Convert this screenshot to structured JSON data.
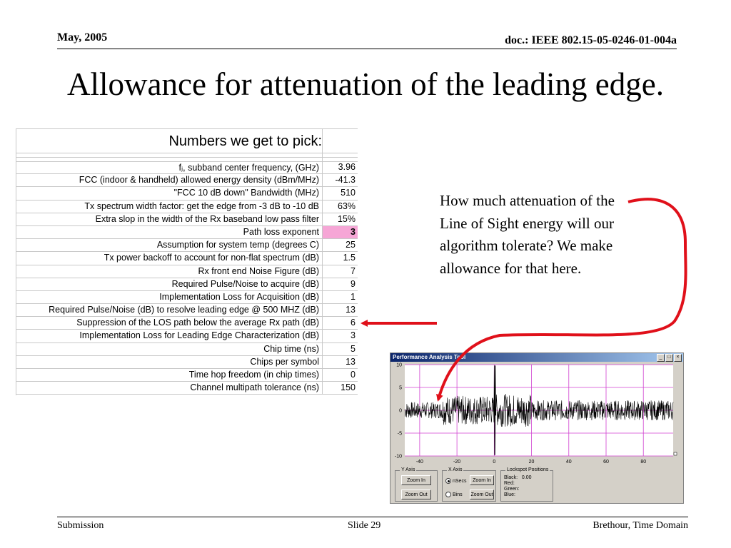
{
  "header": {
    "date": "May, 2005",
    "doc": "doc.: IEEE 802.15-05-0246-01-004a"
  },
  "title": "Allowance for attenuation of the leading edge.",
  "sheet": {
    "heading": "Numbers we get to pick:",
    "rows": [
      {
        "label": "fⱼ, subband center frequency, (GHz)",
        "value": "3.96"
      },
      {
        "label": "FCC (indoor & handheld) allowed energy density (dBm/MHz)",
        "value": "-41.3"
      },
      {
        "label": "\"FCC 10 dB down\" Bandwidth  (MHz)",
        "value": "510"
      },
      {
        "label": "Tx spectrum width factor: get the edge from -3 dB to -10 dB",
        "value": "63%"
      },
      {
        "label": "Extra slop in the width of the Rx baseband low pass filter",
        "value": "15%"
      },
      {
        "label": "Path loss exponent",
        "value": "3"
      },
      {
        "label": "Assumption for system temp (degrees C)",
        "value": "25"
      },
      {
        "label": "Tx power backoff to account for non-flat spectrum (dB)",
        "value": "1.5"
      },
      {
        "label": "Rx front end Noise Figure (dB)",
        "value": "7"
      },
      {
        "label": "Required Pulse/Noise to acquire (dB)",
        "value": "9"
      },
      {
        "label": "Implementation Loss for Acquisition (dB)",
        "value": "1"
      },
      {
        "label": "Required Pulse/Noise (dB) to resolve leading edge @ 500 MHZ (dB)",
        "value": "13"
      },
      {
        "label": "Suppression of the LOS path below the average Rx path (dB)",
        "value": "6"
      },
      {
        "label": "Implementation Loss for Leading Edge Characterization (dB)",
        "value": "3"
      },
      {
        "label": "Chip time (ns)",
        "value": "5"
      },
      {
        "label": "Chips per symbol",
        "value": "13"
      },
      {
        "label": "Time hop freedom (in chip times)",
        "value": "0"
      },
      {
        "label": "Channel multipath tolerance (ns)",
        "value": "150"
      }
    ],
    "highlight_color": "#f6a6d6"
  },
  "annotation": "How much attenuation of the  Line of Sight energy will our algorithm tolerate? We make allowance for that here.",
  "arrow_color": "#e0101a",
  "window": {
    "title": "Performance Analysis Tool",
    "btn_min": "_",
    "btn_max": "□",
    "btn_close": "×",
    "y_ticks": [
      "10",
      "5",
      "0",
      "-5",
      "-10"
    ],
    "x_ticks": [
      "-40",
      "-20",
      "0",
      "20",
      "40",
      "60",
      "80"
    ],
    "yaxis": {
      "label": "Y Axis",
      "zoom_in": "Zoom In",
      "zoom_out": "Zoom Out"
    },
    "xaxis": {
      "label": "X Axis",
      "nsecs": "nSecs",
      "bins": "Bins",
      "zoom_in": "Zoom In",
      "zoom_out": "Zoom Out"
    },
    "lockspot": {
      "label": "Lockspot Positions",
      "black": "Black:",
      "black_val": "0.00",
      "red": "Red:",
      "green": "Green:",
      "blue": "Blue:"
    }
  },
  "footer": {
    "left": "Submission",
    "center": "Slide 29",
    "right": "Brethour, Time Domain"
  }
}
